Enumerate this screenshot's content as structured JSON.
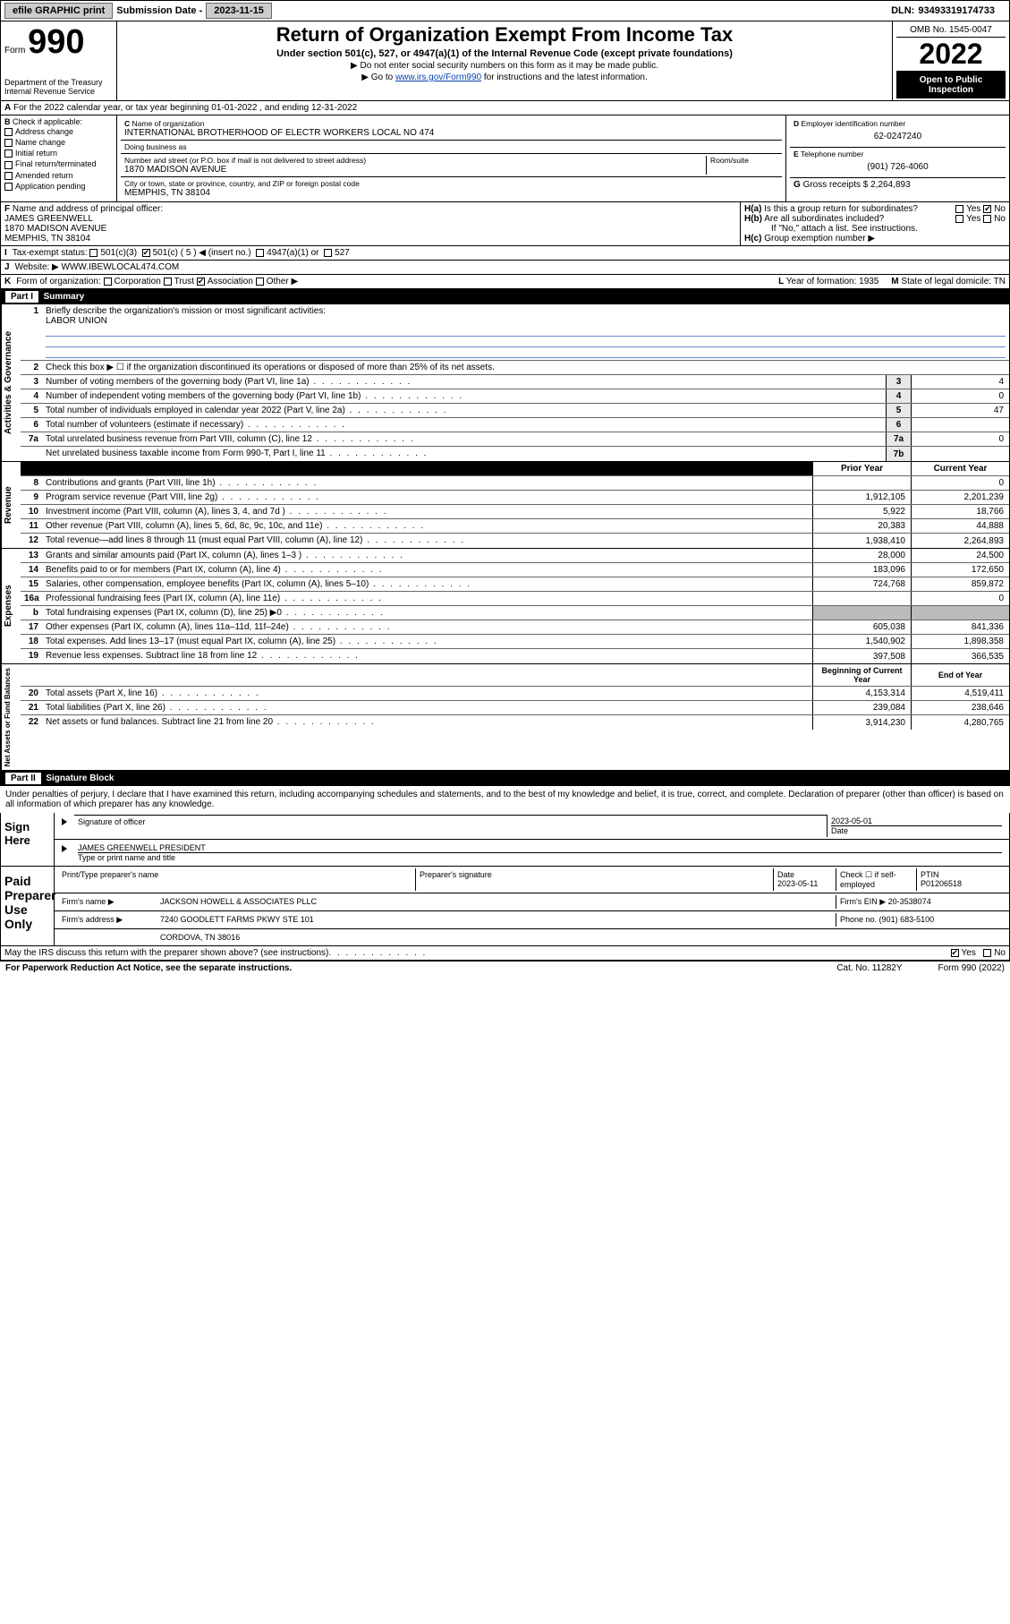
{
  "topbar": {
    "efile": "efile GRAPHIC print",
    "sub_label": "Submission Date -",
    "sub_date": "2023-11-15",
    "dln_label": "DLN:",
    "dln": "93493319174733"
  },
  "header": {
    "form_label": "Form",
    "form_number": "990",
    "dept": "Department of the Treasury\nInternal Revenue Service",
    "title": "Return of Organization Exempt From Income Tax",
    "subtitle": "Under section 501(c), 527, or 4947(a)(1) of the Internal Revenue Code (except private foundations)",
    "instr1": "▶ Do not enter social security numbers on this form as it may be made public.",
    "instr2_pre": "▶ Go to ",
    "instr2_link": "www.irs.gov/Form990",
    "instr2_post": " for instructions and the latest information.",
    "omb": "OMB No. 1545-0047",
    "year": "2022",
    "open": "Open to Public Inspection"
  },
  "section_a": "For the 2022 calendar year, or tax year beginning 01-01-2022     , and ending 12-31-2022",
  "section_b": {
    "label": "Check if applicable:",
    "items": [
      "Address change",
      "Name change",
      "Initial return",
      "Final return/terminated",
      "Amended return",
      "Application pending"
    ]
  },
  "section_c": {
    "name_label": "Name of organization",
    "name": "INTERNATIONAL BROTHERHOOD OF ELECTR WORKERS LOCAL NO 474",
    "dba_label": "Doing business as",
    "dba": "",
    "addr_label": "Number and street (or P.O. box if mail is not delivered to street address)",
    "room_label": "Room/suite",
    "addr": "1870 MADISON AVENUE",
    "city_label": "City or town, state or province, country, and ZIP or foreign postal code",
    "city": "MEMPHIS, TN  38104"
  },
  "section_d": {
    "ein_label": "Employer identification number",
    "ein": "62-0247240",
    "phone_label": "Telephone number",
    "phone": "(901) 726-4060",
    "gross_label": "Gross receipts $",
    "gross": "2,264,893"
  },
  "section_f": {
    "label": "Name and address of principal officer:",
    "name": "JAMES GREENWELL",
    "addr1": "1870 MADISON AVENUE",
    "addr2": "MEMPHIS, TN  38104"
  },
  "section_h": {
    "ha": "Is this a group return for subordinates?",
    "hb": "Are all subordinates included?",
    "hb_note": "If \"No,\" attach a list. See instructions.",
    "hc": "Group exemption number ▶",
    "yes": "Yes",
    "no": "No",
    "ha_checked": "No"
  },
  "section_i": {
    "label": "Tax-exempt status:",
    "opt1": "501(c)(3)",
    "opt2": "501(c) ( 5 ) ◀ (insert no.)",
    "opt2_checked": true,
    "opt3": "4947(a)(1) or",
    "opt4": "527"
  },
  "section_j": {
    "label": "Website: ▶",
    "val": "WWW.IBEWLOCAL474.COM"
  },
  "section_k": {
    "label": "Form of organization:",
    "opts": [
      "Corporation",
      "Trust",
      "Association",
      "Other ▶"
    ],
    "checked": "Association",
    "l_label": "Year of formation:",
    "l_val": "1935",
    "m_label": "State of legal domicile:",
    "m_val": "TN"
  },
  "part1": {
    "header_part": "Part I",
    "header_title": "Summary",
    "mission_label": "Briefly describe the organization's mission or most significant activities:",
    "mission": "LABOR UNION",
    "box2": "Check this box ▶ ☐  if the organization discontinued its operations or disposed of more than 25% of its net assets."
  },
  "side_labels": {
    "gov": "Activities & Governance",
    "rev": "Revenue",
    "exp": "Expenses",
    "net": "Net Assets or Fund Balances"
  },
  "col_headers": {
    "prior": "Prior Year",
    "current": "Current Year",
    "begin": "Beginning of Current Year",
    "end": "End of Year"
  },
  "gov_rows": [
    {
      "num": "3",
      "text": "Number of voting members of the governing body (Part VI, line 1a)",
      "box": "3",
      "val": "4"
    },
    {
      "num": "4",
      "text": "Number of independent voting members of the governing body (Part VI, line 1b)",
      "box": "4",
      "val": "0"
    },
    {
      "num": "5",
      "text": "Total number of individuals employed in calendar year 2022 (Part V, line 2a)",
      "box": "5",
      "val": "47"
    },
    {
      "num": "6",
      "text": "Total number of volunteers (estimate if necessary)",
      "box": "6",
      "val": ""
    },
    {
      "num": "7a",
      "text": "Total unrelated business revenue from Part VIII, column (C), line 12",
      "box": "7a",
      "val": "0"
    },
    {
      "num": "",
      "text": "Net unrelated business taxable income from Form 990-T, Part I, line 11",
      "box": "7b",
      "val": ""
    }
  ],
  "rev_rows": [
    {
      "num": "8",
      "text": "Contributions and grants (Part VIII, line 1h)",
      "prior": "",
      "cur": "0"
    },
    {
      "num": "9",
      "text": "Program service revenue (Part VIII, line 2g)",
      "prior": "1,912,105",
      "cur": "2,201,239"
    },
    {
      "num": "10",
      "text": "Investment income (Part VIII, column (A), lines 3, 4, and 7d )",
      "prior": "5,922",
      "cur": "18,766"
    },
    {
      "num": "11",
      "text": "Other revenue (Part VIII, column (A), lines 5, 6d, 8c, 9c, 10c, and 11e)",
      "prior": "20,383",
      "cur": "44,888"
    },
    {
      "num": "12",
      "text": "Total revenue—add lines 8 through 11 (must equal Part VIII, column (A), line 12)",
      "prior": "1,938,410",
      "cur": "2,264,893"
    }
  ],
  "exp_rows": [
    {
      "num": "13",
      "text": "Grants and similar amounts paid (Part IX, column (A), lines 1–3 )",
      "prior": "28,000",
      "cur": "24,500"
    },
    {
      "num": "14",
      "text": "Benefits paid to or for members (Part IX, column (A), line 4)",
      "prior": "183,096",
      "cur": "172,650"
    },
    {
      "num": "15",
      "text": "Salaries, other compensation, employee benefits (Part IX, column (A), lines 5–10)",
      "prior": "724,768",
      "cur": "859,872"
    },
    {
      "num": "16a",
      "text": "Professional fundraising fees (Part IX, column (A), line 11e)",
      "prior": "",
      "cur": "0"
    },
    {
      "num": "b",
      "text": "Total fundraising expenses (Part IX, column (D), line 25) ▶0",
      "prior": "shade",
      "cur": "shade"
    },
    {
      "num": "17",
      "text": "Other expenses (Part IX, column (A), lines 11a–11d, 11f–24e)",
      "prior": "605,038",
      "cur": "841,336"
    },
    {
      "num": "18",
      "text": "Total expenses. Add lines 13–17 (must equal Part IX, column (A), line 25)",
      "prior": "1,540,902",
      "cur": "1,898,358"
    },
    {
      "num": "19",
      "text": "Revenue less expenses. Subtract line 18 from line 12",
      "prior": "397,508",
      "cur": "366,535"
    }
  ],
  "net_rows": [
    {
      "num": "20",
      "text": "Total assets (Part X, line 16)",
      "prior": "4,153,314",
      "cur": "4,519,411"
    },
    {
      "num": "21",
      "text": "Total liabilities (Part X, line 26)",
      "prior": "239,084",
      "cur": "238,646"
    },
    {
      "num": "22",
      "text": "Net assets or fund balances. Subtract line 21 from line 20",
      "prior": "3,914,230",
      "cur": "4,280,765"
    }
  ],
  "part2": {
    "header_part": "Part II",
    "header_title": "Signature Block",
    "declaration": "Under penalties of perjury, I declare that I have examined this return, including accompanying schedules and statements, and to the best of my knowledge and belief, it is true, correct, and complete. Declaration of preparer (other than officer) is based on all information of which preparer has any knowledge."
  },
  "sign": {
    "here_label": "Sign Here",
    "sig_officer": "Signature of officer",
    "date_label": "Date",
    "date": "2023-05-01",
    "officer": "JAMES GREENWELL PRESIDENT",
    "type_label": "Type or print name and title"
  },
  "paid": {
    "label": "Paid Preparer Use Only",
    "h1": "Print/Type preparer's name",
    "h2": "Preparer's signature",
    "h3": "Date",
    "date": "2023-05-11",
    "h4": "Check ☐ if self-employed",
    "h5": "PTIN",
    "ptin": "P01206518",
    "firm_label": "Firm's name    ▶",
    "firm": "JACKSON HOWELL & ASSOCIATES PLLC",
    "ein_label": "Firm's EIN ▶",
    "ein": "20-3538074",
    "addr_label": "Firm's address ▶",
    "addr1": "7240 GOODLETT FARMS PKWY STE 101",
    "addr2": "CORDOVA, TN  38016",
    "phone_label": "Phone no.",
    "phone": "(901) 683-5100"
  },
  "footer": {
    "discuss": "May the IRS discuss this return with the preparer shown above? (see instructions)",
    "yes": "Yes",
    "no": "No",
    "discuss_checked": "Yes",
    "paperwork": "For Paperwork Reduction Act Notice, see the separate instructions.",
    "cat": "Cat. No. 11282Y",
    "form": "Form 990 (2022)"
  }
}
